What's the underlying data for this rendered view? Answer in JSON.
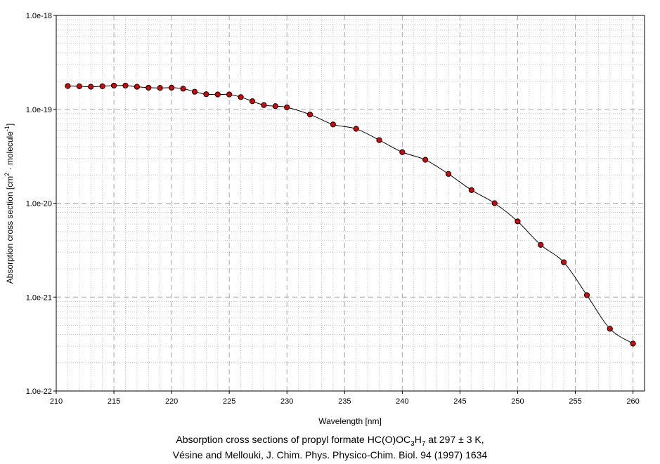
{
  "chart_data": {
    "type": "line",
    "xlabel": "Wavelength [nm]",
    "ylabel": {
      "prefix": "Absorption cross section [cm",
      "sup1": "2",
      "middle": " · molecule",
      "sup2": "-1",
      "suffix": "]"
    },
    "xlim": [
      210,
      261
    ],
    "ylim": [
      1e-22,
      1e-18
    ],
    "yscale": "log",
    "grid": true,
    "x_ticks": [
      "210",
      "215",
      "220",
      "225",
      "230",
      "235",
      "240",
      "245",
      "250",
      "255",
      "260"
    ],
    "y_ticks": [
      "1.0e-22",
      "1.0e-21",
      "1.0e-20",
      "1.0e-19",
      "1.0e-18"
    ],
    "series": [
      {
        "color": "#e00000",
        "line_color": "#000000",
        "x": [
          211,
          212,
          213,
          214,
          215,
          216,
          217,
          218,
          219,
          220,
          221,
          222,
          223,
          224,
          225,
          226,
          227,
          228,
          229,
          230,
          232,
          234,
          236,
          238,
          240,
          242,
          244,
          246,
          248,
          250,
          252,
          254,
          256,
          258,
          260
        ],
        "y": [
          1.77e-19,
          1.76e-19,
          1.74e-19,
          1.76e-19,
          1.79e-19,
          1.79e-19,
          1.74e-19,
          1.7e-19,
          1.69e-19,
          1.7e-19,
          1.66e-19,
          1.54e-19,
          1.45e-19,
          1.44e-19,
          1.44e-19,
          1.35e-19,
          1.22e-19,
          1.11e-19,
          1.08e-19,
          1.05e-19,
          8.8e-20,
          6.9e-20,
          6.2e-20,
          4.7e-20,
          3.5e-20,
          2.9e-20,
          2.05e-20,
          1.38e-20,
          1e-20,
          6.4e-21,
          3.6e-21,
          2.35e-21,
          1.05e-21,
          4.6e-22,
          3.2e-22
        ]
      }
    ]
  },
  "caption": {
    "line1_prefix": "Absorption cross sections of propyl formate HC(O)OC",
    "line1_sub1": "3",
    "line1_mid": "H",
    "line1_sub2": "7",
    "line1_suffix": " at 297 ± 3 K,",
    "line2": "Vésine and Mellouki, J. Chim. Phys. Physico-Chim. Biol. 94 (1997) 1634"
  }
}
